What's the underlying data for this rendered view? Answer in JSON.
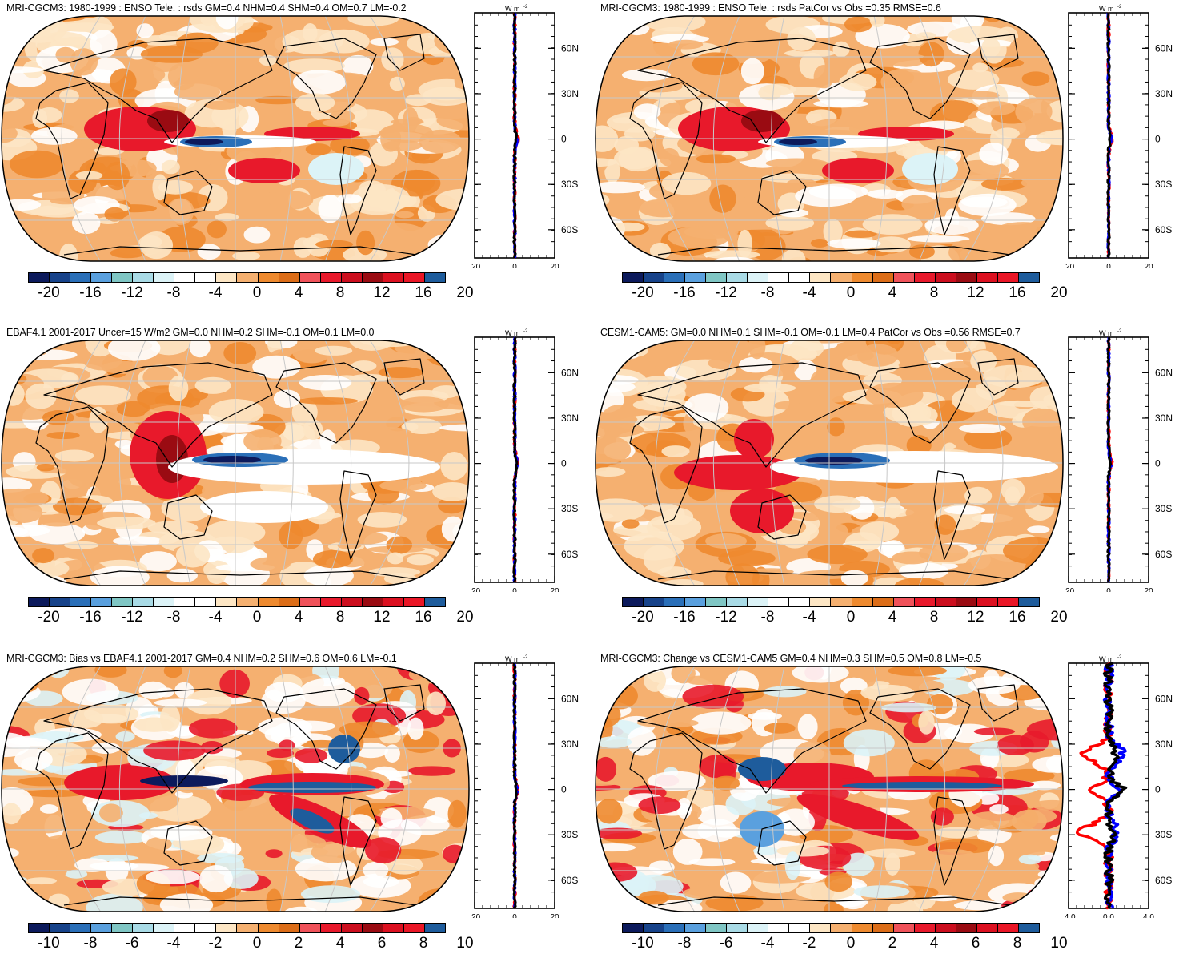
{
  "colors": {
    "scale": [
      "#0c1a5c",
      "#17438a",
      "#2a6fb8",
      "#5aa0de",
      "#7fc6c4",
      "#a9dbe6",
      "#dcf3f7",
      "#ffffff",
      "#ffffff",
      "#fde6c4",
      "#f5b070",
      "#ee8a2f",
      "#dc6d18",
      "#f0525a",
      "#e8192b",
      "#cc0e1e",
      "#9a0b12",
      "#dc1020",
      "#ea1626",
      "#1e5c9c"
    ],
    "land_line": "#000000",
    "grid_line": "#c8c8c8",
    "zonal_red": "#ff0000",
    "zonal_blue": "#0000ff",
    "zonal_black": "#000000"
  },
  "panels": [
    {
      "id": "p1",
      "title": "MRI-CGCM3: 1980-1999 : ENSO Tele. : rsds GM=0.4 NHM=0.4 SHM=0.4 OM=0.7 LM=-0.2",
      "colorbar_labels": [
        "-20",
        "-16",
        "-12",
        "-8",
        "-4",
        "0",
        "4",
        "8",
        "12",
        "16",
        "20"
      ],
      "zonal": {
        "unit_label": "W m",
        "unit_sup": "-2",
        "x_ticks": [
          "-20",
          "0",
          "20"
        ],
        "lat_ticks": [
          "60N",
          "30N",
          "0",
          "30S",
          "60S"
        ]
      }
    },
    {
      "id": "p2",
      "title": "MRI-CGCM3: 1980-1999 : ENSO Tele. : rsds PatCor vs Obs =0.35 RMSE=0.6",
      "colorbar_labels": [
        "-20",
        "-16",
        "-12",
        "-8",
        "-4",
        "0",
        "4",
        "8",
        "12",
        "16",
        "20"
      ],
      "zonal": {
        "unit_label": "W m",
        "unit_sup": "-2",
        "x_ticks": [
          "-20",
          "0",
          "20"
        ],
        "lat_ticks": [
          "60N",
          "30N",
          "0",
          "30S",
          "60S"
        ]
      }
    },
    {
      "id": "p3",
      "title": "EBAF4.1 2001-2017 Uncer=15 W/m2 GM=0.0 NHM=0.2 SHM=-0.1 OM=0.1 LM=0.0",
      "colorbar_labels": [
        "-20",
        "-16",
        "-12",
        "-8",
        "-4",
        "0",
        "4",
        "8",
        "12",
        "16",
        "20"
      ],
      "zonal": {
        "unit_label": "W m",
        "unit_sup": "-2",
        "x_ticks": [
          "-20",
          "0",
          "20"
        ],
        "lat_ticks": [
          "60N",
          "30N",
          "0",
          "30S",
          "60S"
        ]
      }
    },
    {
      "id": "p4",
      "title": "CESM1-CAM5: GM=0.0 NHM=0.1 SHM=-0.1 OM=-0.1 LM=0.4 PatCor vs Obs =0.56 RMSE=0.7",
      "colorbar_labels": [
        "-20",
        "-16",
        "-12",
        "-8",
        "-4",
        "0",
        "4",
        "8",
        "12",
        "16",
        "20"
      ],
      "zonal": {
        "unit_label": "W m",
        "unit_sup": "-2",
        "x_ticks": [
          "-20",
          "0",
          "20"
        ],
        "lat_ticks": [
          "60N",
          "30N",
          "0",
          "30S",
          "60S"
        ]
      }
    },
    {
      "id": "p5",
      "title": "MRI-CGCM3: Bias vs EBAF4.1 2001-2017 GM=0.4 NHM=0.2 SHM=0.6 OM=0.6 LM=-0.1",
      "colorbar_labels": [
        "-10",
        "-8",
        "-6",
        "-4",
        "-2",
        "0",
        "2",
        "4",
        "6",
        "8",
        "10"
      ],
      "zonal": {
        "unit_label": "W m",
        "unit_sup": "-2",
        "x_ticks": [
          "-20",
          "0",
          "20"
        ],
        "lat_ticks": [
          "60N",
          "30N",
          "0",
          "30S",
          "60S"
        ]
      }
    },
    {
      "id": "p6",
      "title": "MRI-CGCM3: Change vs CESM1-CAM5 GM=0.4 NHM=0.3 SHM=0.5 OM=0.8 LM=-0.5",
      "colorbar_labels": [
        "-10",
        "-8",
        "-6",
        "-4",
        "-2",
        "0",
        "2",
        "4",
        "6",
        "8",
        "10"
      ],
      "zonal": {
        "unit_label": "W m",
        "unit_sup": "-2",
        "x_ticks": [
          "-4.0",
          "0.0",
          "4.0"
        ],
        "lat_ticks": [
          "60N",
          "30N",
          "0",
          "30S",
          "60S"
        ]
      }
    }
  ]
}
